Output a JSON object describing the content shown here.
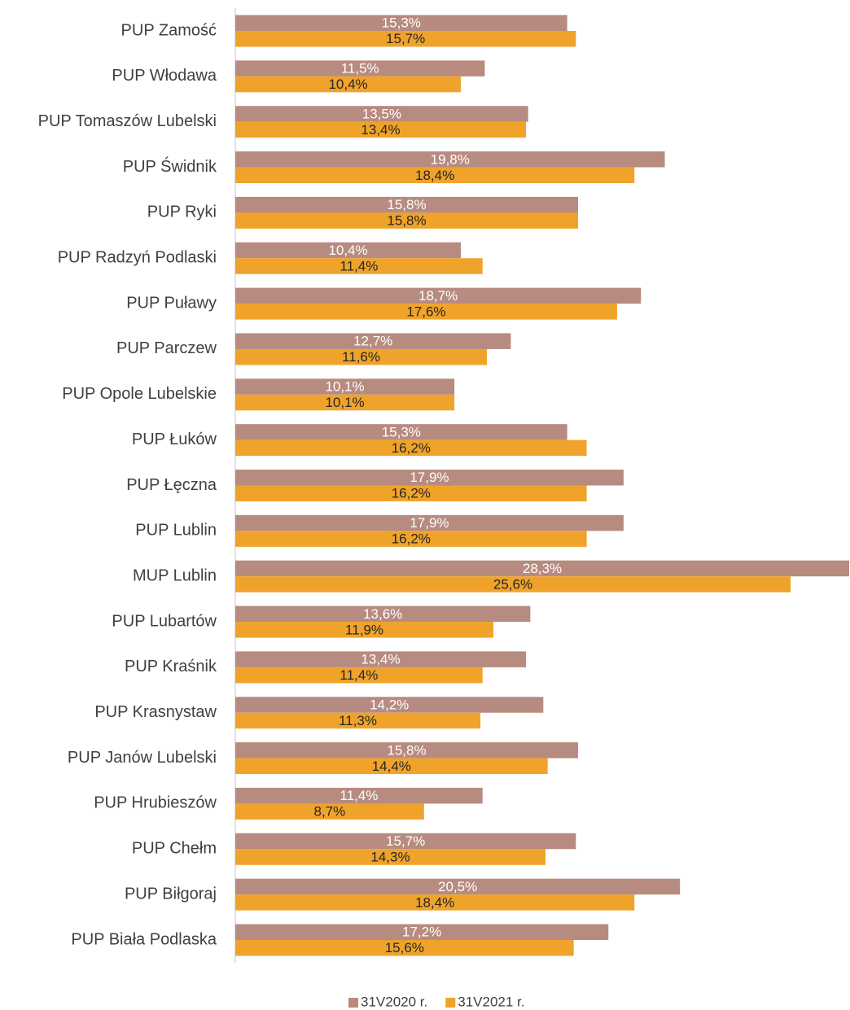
{
  "chart_data": {
    "type": "hbar",
    "categories": [
      "PUP Zamość",
      "PUP Włodawa",
      "PUP Tomaszów Lubelski",
      "PUP Świdnik",
      "PUP Ryki",
      "PUP Radzyń Podlaski",
      "PUP Puławy",
      "PUP Parczew",
      "PUP Opole Lubelskie",
      "PUP Łuków",
      "PUP Łęczna",
      "PUP Lublin",
      "MUP Lublin",
      "PUP Lubartów",
      "PUP Kraśnik",
      "PUP Krasnystaw",
      "PUP Janów Lubelski",
      "PUP Hrubieszów",
      "PUP Chełm",
      "PUP Biłgoraj",
      "PUP Biała Podlaska"
    ],
    "series": [
      {
        "name": "31V2020 r.",
        "color": "#b78b80",
        "values": [
          15.3,
          11.5,
          13.5,
          19.8,
          15.8,
          10.4,
          18.7,
          12.7,
          10.1,
          15.3,
          17.9,
          17.9,
          28.3,
          13.6,
          13.4,
          14.2,
          15.8,
          11.4,
          15.7,
          20.5,
          17.2
        ],
        "value_labels": [
          "15,3%",
          "11,5%",
          "13,5%",
          "19,8%",
          "15,8%",
          "10,4%",
          "18,7%",
          "12,7%",
          "10,1%",
          "15,3%",
          "17,9%",
          "17,9%",
          "28,3%",
          "13,6%",
          "13,4%",
          "14,2%",
          "15,8%",
          "11,4%",
          "15,7%",
          "20,5%",
          "17,2%"
        ]
      },
      {
        "name": "31V2021 r.",
        "color": "#f0a32a",
        "values": [
          15.7,
          10.4,
          13.4,
          18.4,
          15.8,
          11.4,
          17.6,
          11.6,
          10.1,
          16.2,
          16.2,
          16.2,
          25.6,
          11.9,
          11.4,
          11.3,
          14.4,
          8.7,
          14.3,
          18.4,
          15.6
        ],
        "value_labels": [
          "15,7%",
          "10,4%",
          "13,4%",
          "18,4%",
          "15,8%",
          "11,4%",
          "17,6%",
          "11,6%",
          "10,1%",
          "16,2%",
          "16,2%",
          "16,2%",
          "25,6%",
          "11,9%",
          "11,4%",
          "11,3%",
          "14,4%",
          "8,7%",
          "14,3%",
          "18,4%",
          "15,6%"
        ]
      }
    ],
    "xlim": [
      0,
      28.3
    ],
    "legend": "bottom"
  }
}
